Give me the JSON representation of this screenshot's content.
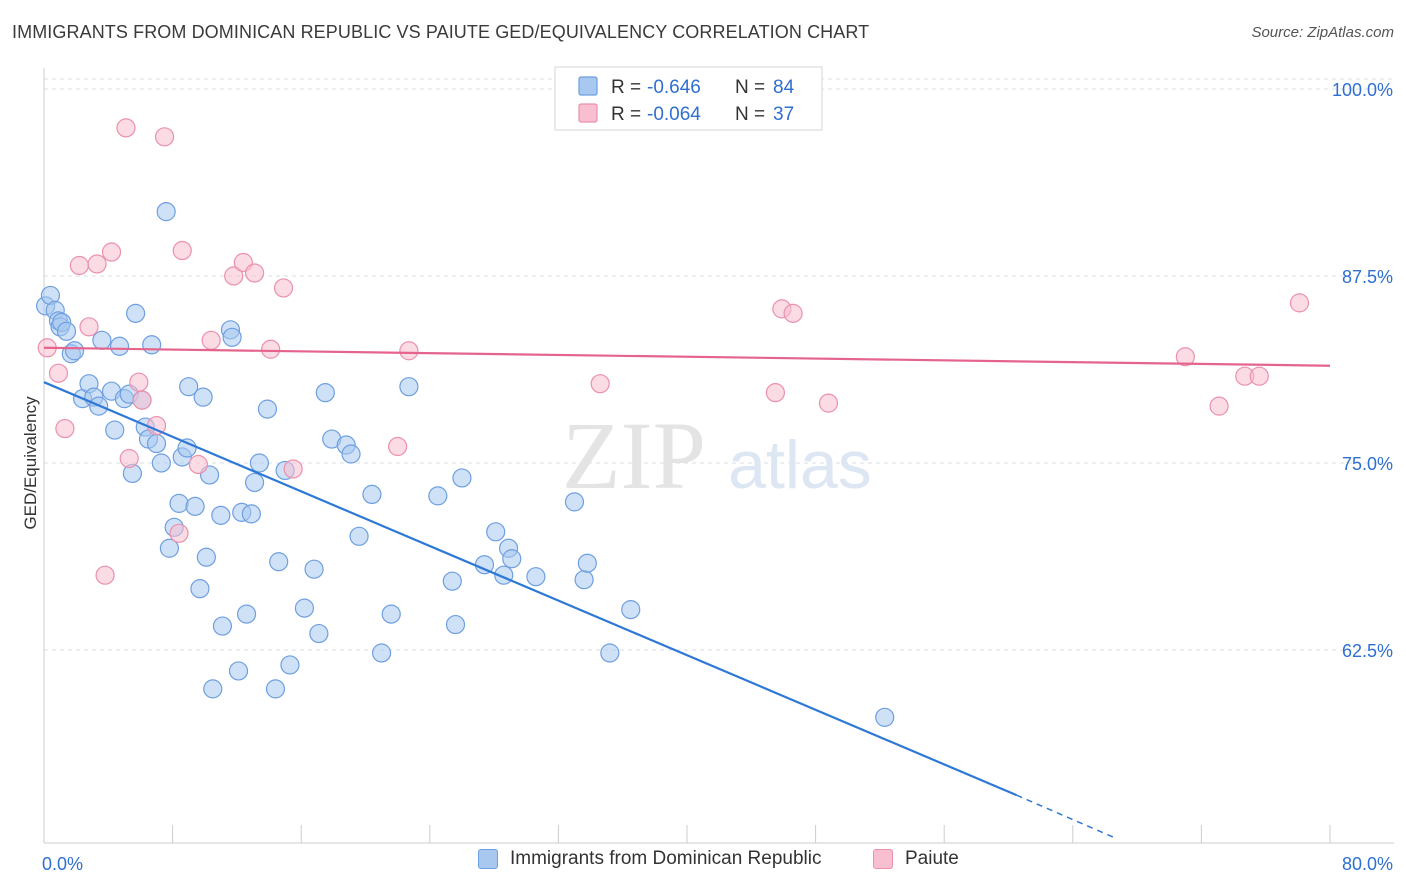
{
  "title": "IMMIGRANTS FROM DOMINICAN REPUBLIC VS PAIUTE GED/EQUIVALENCY CORRELATION CHART",
  "source": "Source: ZipAtlas.com",
  "watermark": {
    "zip": "ZIP",
    "atlas": "atlas"
  },
  "colors": {
    "blue_fill": "#a8c8f0",
    "blue_stroke": "#6e9fe0",
    "blue_line": "#2e78d6",
    "pink_fill": "#f7bfd0",
    "pink_stroke": "#ec90ad",
    "pink_line": "#e5648d",
    "value_text": "#2e6fd0",
    "grid": "#d8dde5",
    "axis": "#cccccc"
  },
  "legend_top": [
    {
      "r_label": "R =",
      "r_value": "-0.646",
      "n_label": "N =",
      "n_value": "84",
      "series": "blue"
    },
    {
      "r_label": "R =",
      "r_value": "-0.064",
      "n_label": "N =",
      "n_value": "37",
      "series": "pink"
    }
  ],
  "legend_bottom": [
    {
      "label": "Immigrants from Dominican Republic",
      "series": "blue"
    },
    {
      "label": "Paiute",
      "series": "pink"
    }
  ],
  "chart_data": {
    "type": "scatter",
    "title": "IMMIGRANTS FROM DOMINICAN REPUBLIC VS PAIUTE GED/EQUIVALENCY CORRELATION CHART",
    "xlabel": "",
    "ylabel": "GED/Equivalency",
    "xlim": [
      0,
      80
    ],
    "ylim": [
      49.6,
      101.4
    ],
    "x_tick_labels": [
      "0.0%",
      "80.0%"
    ],
    "y_ticks": [
      62.5,
      75.0,
      87.5,
      100.0
    ],
    "y_tick_labels": [
      "62.5%",
      "75.0%",
      "87.5%",
      "100.0%"
    ],
    "grid": true,
    "legend_placement": "top-center",
    "series": [
      {
        "name": "Immigrants from Dominican Republic",
        "color": "#a8c8f0",
        "r": -0.646,
        "n": 84,
        "trend": {
          "x": [
            0,
            60.5
          ],
          "y": [
            80.4,
            52.8
          ],
          "dashed_to": [
            66.5,
            50.0
          ]
        },
        "points": [
          [
            0.1,
            85.5
          ],
          [
            0.4,
            86.2
          ],
          [
            0.7,
            85.2
          ],
          [
            0.9,
            84.5
          ],
          [
            1.0,
            84.1
          ],
          [
            1.1,
            84.4
          ],
          [
            1.4,
            83.8
          ],
          [
            1.7,
            82.3
          ],
          [
            1.9,
            82.5
          ],
          [
            2.4,
            79.3
          ],
          [
            2.8,
            80.3
          ],
          [
            3.1,
            79.4
          ],
          [
            3.4,
            78.8
          ],
          [
            3.6,
            83.2
          ],
          [
            4.2,
            79.8
          ],
          [
            4.4,
            77.2
          ],
          [
            4.7,
            82.8
          ],
          [
            5.0,
            79.3
          ],
          [
            5.3,
            79.6
          ],
          [
            5.5,
            74.3
          ],
          [
            5.7,
            85.0
          ],
          [
            6.1,
            79.2
          ],
          [
            6.3,
            77.4
          ],
          [
            6.5,
            76.6
          ],
          [
            6.7,
            82.9
          ],
          [
            7.0,
            76.3
          ],
          [
            7.3,
            75.0
          ],
          [
            7.6,
            91.8
          ],
          [
            7.8,
            69.3
          ],
          [
            8.1,
            70.7
          ],
          [
            8.4,
            72.3
          ],
          [
            8.6,
            75.4
          ],
          [
            8.9,
            76.0
          ],
          [
            9.0,
            80.1
          ],
          [
            9.4,
            72.1
          ],
          [
            9.7,
            66.6
          ],
          [
            9.9,
            79.4
          ],
          [
            10.1,
            68.7
          ],
          [
            10.3,
            74.2
          ],
          [
            10.5,
            59.9
          ],
          [
            11.0,
            71.5
          ],
          [
            11.1,
            64.1
          ],
          [
            11.6,
            83.9
          ],
          [
            11.7,
            83.4
          ],
          [
            12.1,
            61.1
          ],
          [
            12.3,
            71.7
          ],
          [
            12.6,
            64.9
          ],
          [
            12.9,
            71.6
          ],
          [
            13.1,
            73.7
          ],
          [
            13.4,
            75.0
          ],
          [
            13.9,
            78.6
          ],
          [
            14.4,
            59.9
          ],
          [
            14.6,
            68.4
          ],
          [
            15.0,
            74.5
          ],
          [
            15.3,
            61.5
          ],
          [
            16.2,
            65.3
          ],
          [
            16.8,
            67.9
          ],
          [
            17.1,
            63.6
          ],
          [
            17.5,
            79.7
          ],
          [
            17.9,
            76.6
          ],
          [
            18.8,
            76.2
          ],
          [
            19.1,
            75.6
          ],
          [
            19.6,
            70.1
          ],
          [
            20.4,
            72.9
          ],
          [
            21.0,
            62.3
          ],
          [
            21.6,
            64.9
          ],
          [
            22.7,
            80.1
          ],
          [
            24.5,
            72.8
          ],
          [
            25.4,
            67.1
          ],
          [
            25.6,
            64.2
          ],
          [
            26.0,
            74.0
          ],
          [
            27.4,
            68.2
          ],
          [
            28.1,
            70.4
          ],
          [
            28.6,
            67.5
          ],
          [
            28.9,
            69.3
          ],
          [
            29.1,
            68.6
          ],
          [
            30.6,
            67.4
          ],
          [
            33.0,
            72.4
          ],
          [
            33.6,
            67.2
          ],
          [
            33.8,
            68.3
          ],
          [
            35.2,
            62.3
          ],
          [
            36.5,
            65.2
          ],
          [
            52.3,
            58.0
          ]
        ]
      },
      {
        "name": "Paiute",
        "color": "#f7bfd0",
        "r": -0.064,
        "n": 37,
        "trend": {
          "x": [
            0,
            80
          ],
          "y": [
            82.7,
            81.5
          ]
        },
        "points": [
          [
            0.2,
            82.7
          ],
          [
            0.9,
            81.0
          ],
          [
            1.3,
            77.3
          ],
          [
            2.2,
            88.2
          ],
          [
            2.8,
            84.1
          ],
          [
            3.3,
            88.3
          ],
          [
            3.8,
            67.5
          ],
          [
            4.2,
            89.1
          ],
          [
            5.1,
            97.4
          ],
          [
            5.3,
            75.3
          ],
          [
            5.9,
            80.4
          ],
          [
            6.1,
            79.2
          ],
          [
            7.0,
            77.5
          ],
          [
            7.5,
            96.8
          ],
          [
            8.4,
            70.3
          ],
          [
            8.6,
            89.2
          ],
          [
            9.6,
            74.9
          ],
          [
            10.4,
            83.2
          ],
          [
            11.8,
            87.5
          ],
          [
            12.4,
            88.4
          ],
          [
            13.1,
            87.7
          ],
          [
            14.1,
            82.6
          ],
          [
            14.9,
            86.7
          ],
          [
            15.5,
            74.6
          ],
          [
            22.0,
            76.1
          ],
          [
            22.7,
            82.5
          ],
          [
            34.6,
            80.3
          ],
          [
            45.5,
            79.7
          ],
          [
            45.9,
            85.3
          ],
          [
            46.6,
            85.0
          ],
          [
            48.8,
            79.0
          ],
          [
            71.0,
            82.1
          ],
          [
            73.1,
            78.8
          ],
          [
            74.7,
            80.8
          ],
          [
            75.6,
            80.8
          ],
          [
            78.1,
            85.7
          ]
        ]
      }
    ]
  }
}
